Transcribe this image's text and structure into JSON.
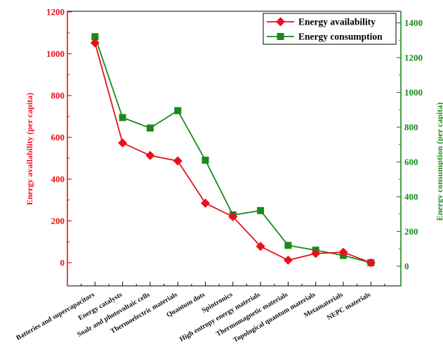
{
  "chart_data": {
    "type": "line",
    "categories": [
      "Batteries and supercapacitors",
      "Energy catalysts",
      "Soalr and photovoltaic cells",
      "Thermoelectric materials",
      "Quantum dots",
      "Spintronics",
      "High entropy energy materials",
      "Thermomagnetic materials",
      "Topological quantum materials",
      "Metamaterials",
      "NEPC materials"
    ],
    "series": [
      {
        "name": "Energy availability",
        "axis": "left",
        "color": "#e8101a",
        "marker": "diamond",
        "values": [
          1052,
          573,
          513,
          487,
          285,
          220,
          78,
          12,
          44,
          50,
          0
        ]
      },
      {
        "name": "Energy consumption",
        "axis": "right",
        "color": "#1a8a1a",
        "marker": "square",
        "values": [
          1320,
          855,
          795,
          895,
          610,
          295,
          320,
          120,
          92,
          62,
          20
        ]
      }
    ],
    "ylabel": "Energy availability (per capita)",
    "y2label": "Energy consumption (per capita)",
    "ylim": [
      -120,
      1200
    ],
    "y2lim": [
      -120,
      1500
    ],
    "yticks": [
      0,
      200,
      400,
      600,
      800,
      1000,
      1200
    ],
    "y2ticks": [
      0,
      200,
      400,
      600,
      800,
      1000,
      1200,
      1400
    ],
    "legend_position": "top-right",
    "grid": false
  }
}
